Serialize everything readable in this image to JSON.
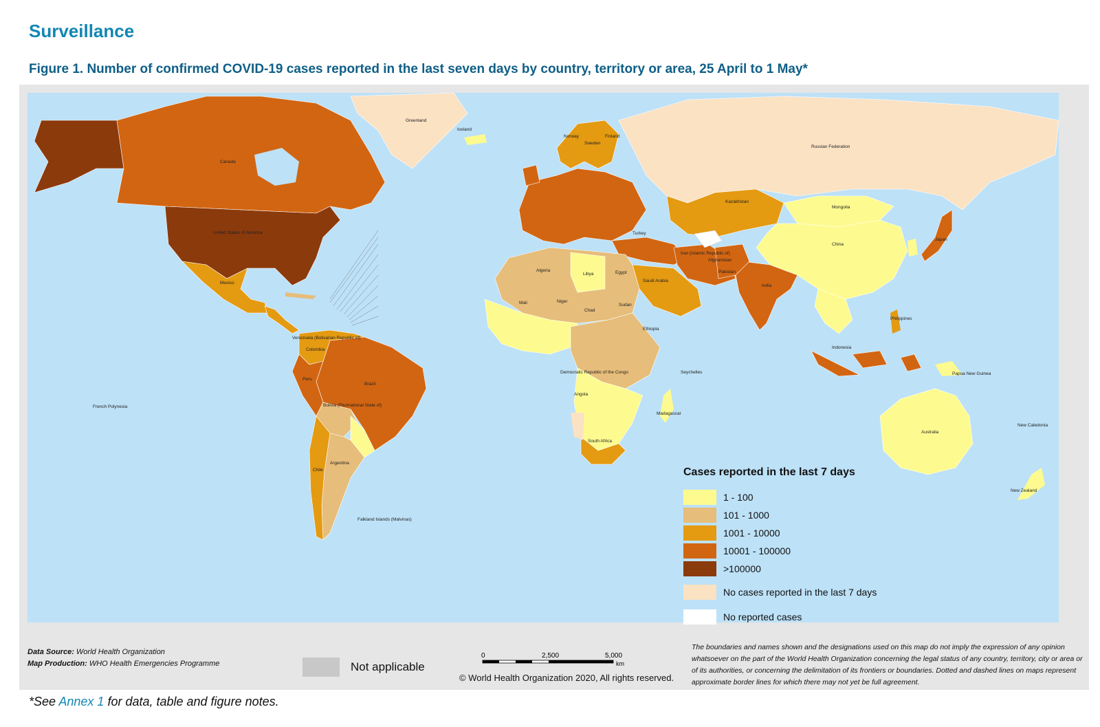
{
  "header": {
    "section_title": "Surveillance",
    "figure_title": "Figure 1. Number of confirmed COVID-19 cases reported in the last seven days by country, territory or area, 25 April to 1 May*"
  },
  "colors": {
    "ocean": "#bde1f7",
    "cat_1_100": "#fdfb8f",
    "cat_101_1000": "#e6bd7a",
    "cat_1001_10000": "#e49a11",
    "cat_10001_100000": "#d26512",
    "cat_gt_100000": "#8b3a0c",
    "no_cases_7_days": "#fbe2c3",
    "no_reported": "#ffffff",
    "not_applicable": "#c8c8c8",
    "title_blue": "#1287b3"
  },
  "map": {
    "country_labels": [
      {
        "name": "Greenland",
        "icon": "greenland"
      },
      {
        "name": "Canada"
      },
      {
        "name": "United States of America"
      },
      {
        "name": "Mexico"
      },
      {
        "name": "Brazil"
      },
      {
        "name": "Argentina"
      },
      {
        "name": "Peru"
      },
      {
        "name": "Chile"
      },
      {
        "name": "Russian Federation"
      },
      {
        "name": "China"
      },
      {
        "name": "Mongolia"
      },
      {
        "name": "Kazakhstan"
      },
      {
        "name": "India"
      },
      {
        "name": "Australia"
      },
      {
        "name": "Algeria"
      },
      {
        "name": "Libya"
      },
      {
        "name": "Sudan"
      },
      {
        "name": "Chad"
      },
      {
        "name": "Niger"
      },
      {
        "name": "Mali"
      },
      {
        "name": "Angola"
      },
      {
        "name": "South Africa"
      },
      {
        "name": "Saudi Arabia"
      },
      {
        "name": "Iran (Islamic Republic of)"
      },
      {
        "name": "Egypt"
      },
      {
        "name": "Japan"
      },
      {
        "name": "Indonesia"
      },
      {
        "name": "Philippines"
      },
      {
        "name": "New Zealand"
      },
      {
        "name": "Papua New Guinea"
      },
      {
        "name": "Iceland"
      },
      {
        "name": "Norway"
      },
      {
        "name": "Sweden"
      },
      {
        "name": "Finland"
      },
      {
        "name": "French Polynesia"
      },
      {
        "name": "Falkland Islands (Malvinas)"
      },
      {
        "name": "Madagascar"
      },
      {
        "name": "Ethiopia"
      },
      {
        "name": "Democratic Republic of the Congo"
      },
      {
        "name": "Bolivia (Plurinational State of)"
      },
      {
        "name": "Colombia"
      },
      {
        "name": "Venezuela (Bolivarian Republic of)"
      },
      {
        "name": "Turkey"
      },
      {
        "name": "Pakistan"
      },
      {
        "name": "Afghanistan"
      },
      {
        "name": "Seychelles"
      },
      {
        "name": "New Caledonia"
      }
    ]
  },
  "legend": {
    "title": "Cases reported in the last 7 days",
    "items": [
      {
        "label": "1 - 100",
        "color": "#fdfb8f"
      },
      {
        "label": "101 - 1000",
        "color": "#e6bd7a"
      },
      {
        "label": "1001 - 10000",
        "color": "#e49a11"
      },
      {
        "label": "10001 - 100000",
        "color": "#d26512"
      },
      {
        "label": ">100000",
        "color": "#8b3a0c"
      }
    ],
    "extra_items": [
      {
        "label": "No cases reported in the last 7 days",
        "color": "#fbe2c3"
      },
      {
        "label": "No reported cases",
        "color": "#ffffff"
      }
    ]
  },
  "footer": {
    "data_source_label": "Data Source:",
    "data_source_value": "World Health Organization",
    "map_production_label": "Map Production:",
    "map_production_value": "WHO Health Emergencies Programme",
    "not_applicable": "Not applicable",
    "scale": {
      "ticks": [
        "0",
        "2,500",
        "5,000"
      ],
      "unit": "km"
    },
    "copyright": "© World Health Organization 2020, All rights reserved.",
    "disclaimer": "The boundaries and names shown and the designations used on this map do not imply the expression of any opinion whatsoever on the part of the World Health Organization concerning the legal status of any country, territory, city or area or of its authorities, or concerning the delimitation of its frontiers or boundaries. Dotted and dashed lines on maps represent approximate border lines for which there may not yet be full agreement."
  },
  "footnote": {
    "prefix": "*See ",
    "link": "Annex 1",
    "suffix": " for data, table and figure notes."
  }
}
